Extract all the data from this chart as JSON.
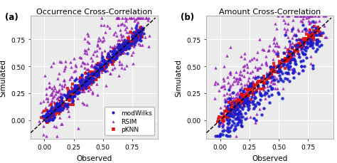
{
  "title_a": "Occurrence Cross-Correlation",
  "title_b": "Amount Cross-Correlation",
  "xlabel": "Observed",
  "ylabel": "Simulated",
  "label_a": "(a)",
  "label_b": "(b)",
  "xlim": [
    -0.12,
    0.97
  ],
  "ylim": [
    -0.17,
    0.97
  ],
  "xticks": [
    0.0,
    0.25,
    0.5,
    0.75
  ],
  "yticks": [
    0.0,
    0.25,
    0.5,
    0.75
  ],
  "legend_labels": [
    "modWilks",
    "RSIM",
    "pKNN"
  ],
  "colors": {
    "modWilks": "#1C1CCC",
    "RSIM": "#9922BB",
    "pKNN": "#DD1111"
  },
  "bg_color": "#EBEBEB",
  "n_points": 300,
  "title_fontsize": 8,
  "label_fontsize": 7.5,
  "tick_fontsize": 6.5,
  "legend_fontsize": 6.5,
  "marker_size": 10
}
